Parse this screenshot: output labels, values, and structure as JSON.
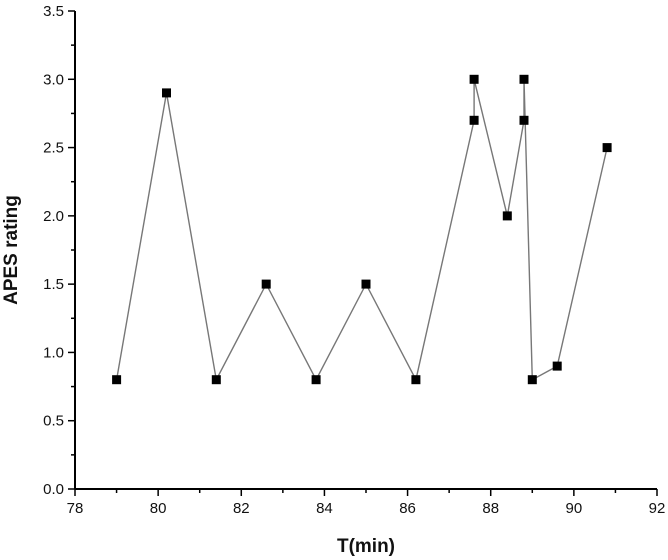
{
  "chart_data": {
    "type": "line",
    "xlabel": "T(min)",
    "ylabel": "APES rating",
    "xlim": [
      78,
      92
    ],
    "ylim": [
      0.0,
      3.5
    ],
    "x_ticks": [
      "78",
      "80",
      "82",
      "84",
      "86",
      "88",
      "90",
      "92"
    ],
    "y_ticks": [
      "0.0",
      "0.5",
      "1.0",
      "1.5",
      "2.0",
      "2.5",
      "3.0",
      "3.5"
    ],
    "grid": false,
    "marker": "square",
    "line_color": "#777777",
    "marker_color": "#000000",
    "series": [
      {
        "x": [
          79.0,
          80.2,
          81.4,
          82.6,
          83.8,
          85.0,
          86.2,
          87.6,
          87.6,
          88.4,
          88.8,
          88.8,
          89.0,
          89.6,
          90.8
        ],
        "y": [
          0.8,
          2.9,
          0.8,
          1.5,
          0.8,
          1.5,
          0.8,
          2.7,
          3.0,
          2.0,
          2.7,
          3.0,
          0.8,
          0.9,
          2.5
        ]
      }
    ]
  }
}
